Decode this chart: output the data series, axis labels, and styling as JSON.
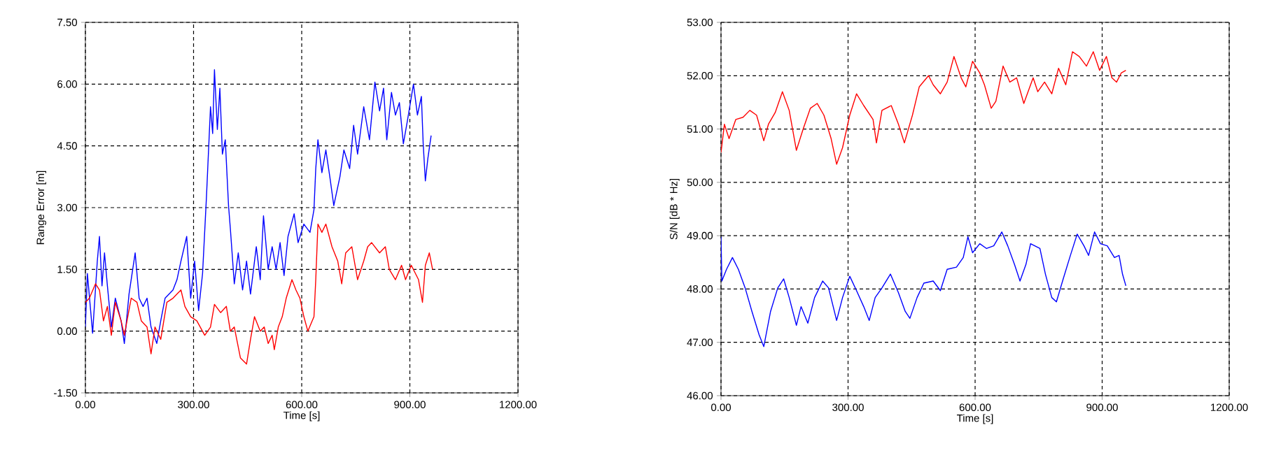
{
  "chart_data": [
    {
      "type": "line",
      "xlabel": "Time [s]",
      "ylabel": "Range Error [m]",
      "grid": true,
      "xlim": [
        0,
        1200
      ],
      "ylim": [
        -1.5,
        7.5
      ],
      "xticks": [
        {
          "value": 0,
          "label": "0.00"
        },
        {
          "value": 300,
          "label": "300.00"
        },
        {
          "value": 600,
          "label": "600.00"
        },
        {
          "value": 900,
          "label": "900.00"
        },
        {
          "value": 1200,
          "label": "1200.00"
        }
      ],
      "yticks": [
        {
          "value": -1.5,
          "label": "-1.50"
        },
        {
          "value": 0,
          "label": "0.00"
        },
        {
          "value": 1.5,
          "label": "1.50"
        },
        {
          "value": 3,
          "label": "3.00"
        },
        {
          "value": 4.5,
          "label": "4.50"
        },
        {
          "value": 6,
          "label": "6.00"
        },
        {
          "value": 7.5,
          "label": "7.50"
        }
      ],
      "series": [
        {
          "color": "#0000ff",
          "x": [
            0,
            5.5,
            20,
            33,
            39,
            46,
            53,
            61,
            72,
            83,
            99,
            108,
            121,
            138,
            149,
            160,
            171,
            182,
            198,
            209,
            221,
            243,
            254,
            265,
            281,
            292,
            303,
            314,
            325,
            336,
            347,
            353,
            358,
            366,
            373,
            380,
            388,
            397,
            402,
            413,
            424,
            436,
            447,
            458,
            474,
            485,
            494,
            507,
            518,
            529,
            540,
            551,
            562,
            579,
            590,
            606,
            623,
            634,
            639,
            645,
            656,
            667,
            678,
            689,
            706,
            717,
            733,
            744,
            755,
            772,
            788,
            803,
            816,
            827,
            836,
            849,
            860,
            871,
            882,
            893,
            910,
            921,
            932,
            937,
            943,
            950,
            959
          ],
          "values": [
            0.1,
            1.4,
            -0.05,
            1.7,
            2.3,
            1.1,
            1.9,
            1.1,
            0.1,
            0.8,
            0.25,
            -0.3,
            0.9,
            1.9,
            0.8,
            0.6,
            0.8,
            0.1,
            -0.3,
            0.25,
            0.8,
            1.0,
            1.25,
            1.7,
            2.3,
            0.8,
            1.7,
            0.5,
            1.4,
            3.3,
            5.45,
            4.8,
            6.35,
            4.9,
            5.9,
            4.3,
            4.65,
            3.05,
            2.5,
            1.15,
            1.9,
            1.0,
            1.7,
            0.9,
            2.05,
            1.25,
            2.8,
            1.5,
            2.05,
            1.5,
            2.15,
            1.35,
            2.3,
            2.85,
            2.15,
            2.6,
            2.4,
            2.95,
            3.95,
            4.65,
            3.85,
            4.4,
            3.75,
            3.05,
            3.75,
            4.4,
            3.95,
            5.0,
            4.3,
            5.45,
            4.65,
            6.05,
            5.35,
            5.9,
            4.65,
            5.8,
            5.25,
            5.55,
            4.55,
            5.1,
            6.0,
            5.25,
            5.7,
            4.55,
            3.65,
            4.2,
            4.75
          ]
        },
        {
          "color": "#ff0000",
          "x": [
            0,
            11,
            28,
            39,
            50,
            61,
            72,
            83,
            99,
            108,
            127,
            143,
            155,
            171,
            182,
            193,
            209,
            226,
            243,
            265,
            276,
            292,
            309,
            331,
            347,
            358,
            375,
            391,
            402,
            413,
            430,
            447,
            458,
            469,
            485,
            496,
            507,
            518,
            524,
            535,
            546,
            557,
            573,
            584,
            595,
            606,
            617,
            634,
            639,
            645,
            656,
            667,
            684,
            700,
            711,
            722,
            739,
            755,
            772,
            783,
            794,
            816,
            832,
            843,
            860,
            877,
            888,
            904,
            924,
            935,
            943,
            954,
            963
          ],
          "values": [
            0.7,
            0.8,
            1.15,
            1.0,
            0.25,
            0.6,
            -0.1,
            0.7,
            0.25,
            -0.1,
            0.8,
            0.7,
            0.25,
            0.1,
            -0.55,
            0.1,
            -0.2,
            0.7,
            0.8,
            1.0,
            0.6,
            0.35,
            0.25,
            -0.1,
            0.1,
            0.65,
            0.45,
            0.6,
            0.0,
            0.1,
            -0.65,
            -0.8,
            -0.2,
            0.35,
            0.0,
            0.1,
            -0.3,
            -0.1,
            -0.45,
            0.1,
            0.35,
            0.8,
            1.25,
            1.0,
            0.8,
            0.35,
            0.0,
            0.35,
            1.25,
            2.6,
            2.4,
            2.6,
            2.05,
            1.7,
            1.15,
            1.9,
            2.05,
            1.25,
            1.7,
            2.05,
            2.15,
            1.9,
            2.05,
            1.5,
            1.25,
            1.6,
            1.25,
            1.6,
            1.25,
            0.7,
            1.6,
            1.9,
            1.5
          ]
        }
      ]
    },
    {
      "type": "line",
      "xlabel": "Time [s]",
      "ylabel": "S/N [dB * Hz]",
      "grid": true,
      "xlim": [
        0,
        1200
      ],
      "ylim": [
        46,
        53
      ],
      "xticks": [
        {
          "value": 0,
          "label": "0.00"
        },
        {
          "value": 300,
          "label": "300.00"
        },
        {
          "value": 600,
          "label": "600.00"
        },
        {
          "value": 900,
          "label": "900.00"
        },
        {
          "value": 1200,
          "label": "1200.00"
        }
      ],
      "yticks": [
        {
          "value": 46,
          "label": "46.00"
        },
        {
          "value": 47,
          "label": "47.00"
        },
        {
          "value": 48,
          "label": "48.00"
        },
        {
          "value": 49,
          "label": "49.00"
        },
        {
          "value": 50,
          "label": "50.00"
        },
        {
          "value": 51,
          "label": "51.00"
        },
        {
          "value": 52,
          "label": "52.00"
        },
        {
          "value": 53,
          "label": "53.00"
        }
      ],
      "series": [
        {
          "color": "#ff0000",
          "x": [
            0,
            8,
            19,
            35,
            52,
            68,
            84,
            101,
            112,
            128,
            145,
            161,
            178,
            194,
            211,
            227,
            243,
            260,
            273,
            287,
            304,
            320,
            337,
            359,
            367,
            380,
            402,
            419,
            433,
            452,
            468,
            490,
            501,
            518,
            534,
            550,
            567,
            578,
            594,
            611,
            622,
            638,
            649,
            666,
            682,
            698,
            715,
            737,
            748,
            764,
            781,
            797,
            814,
            830,
            846,
            863,
            879,
            894,
            910,
            923,
            934,
            945,
            956
          ],
          "values": [
            50.56,
            51.09,
            50.82,
            51.18,
            51.22,
            51.35,
            51.26,
            50.78,
            51.09,
            51.31,
            51.7,
            51.35,
            50.6,
            51.0,
            51.39,
            51.48,
            51.26,
            50.82,
            50.34,
            50.65,
            51.26,
            51.66,
            51.44,
            51.18,
            50.74,
            51.35,
            51.44,
            51.09,
            50.74,
            51.26,
            51.79,
            52.0,
            51.83,
            51.66,
            51.88,
            52.36,
            51.96,
            51.79,
            52.27,
            52.05,
            51.83,
            51.39,
            51.52,
            52.18,
            51.88,
            51.96,
            51.48,
            51.96,
            51.7,
            51.88,
            51.66,
            52.14,
            51.83,
            52.45,
            52.36,
            52.18,
            52.45,
            52.1,
            52.36,
            51.96,
            51.88,
            52.05,
            52.1
          ]
        },
        {
          "color": "#0000ff",
          "x": [
            0,
            2,
            13,
            27,
            41,
            57,
            73,
            90,
            101,
            117,
            134,
            148,
            161,
            178,
            189,
            205,
            221,
            240,
            254,
            273,
            287,
            304,
            320,
            337,
            350,
            364,
            380,
            400,
            419,
            435,
            446,
            463,
            479,
            501,
            518,
            534,
            556,
            572,
            583,
            594,
            611,
            627,
            644,
            663,
            677,
            693,
            706,
            720,
            731,
            753,
            766,
            781,
            792,
            808,
            825,
            841,
            857,
            868,
            882,
            896,
            912,
            929,
            940,
            948,
            956
          ],
          "values": [
            48.98,
            48.15,
            48.37,
            48.59,
            48.37,
            48.02,
            47.58,
            47.14,
            46.92,
            47.58,
            48.02,
            48.19,
            47.84,
            47.32,
            47.67,
            47.36,
            47.84,
            48.15,
            48.02,
            47.41,
            47.84,
            48.24,
            47.97,
            47.67,
            47.41,
            47.84,
            48.02,
            48.28,
            47.93,
            47.58,
            47.45,
            47.84,
            48.11,
            48.15,
            47.97,
            48.37,
            48.41,
            48.59,
            48.98,
            48.68,
            48.85,
            48.76,
            48.81,
            49.07,
            48.81,
            48.46,
            48.15,
            48.46,
            48.85,
            48.76,
            48.28,
            47.84,
            47.76,
            48.19,
            48.63,
            49.03,
            48.81,
            48.63,
            49.07,
            48.85,
            48.81,
            48.59,
            48.63,
            48.28,
            48.06
          ]
        }
      ]
    }
  ]
}
